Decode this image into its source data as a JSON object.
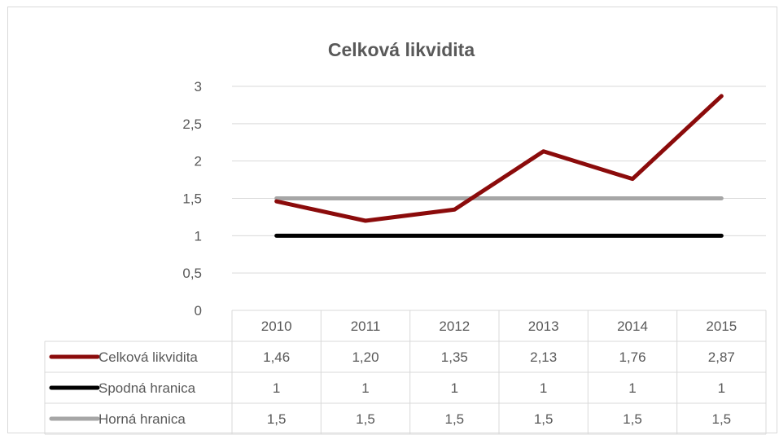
{
  "chart_data": {
    "type": "line",
    "title": "Celková likvidita",
    "categories": [
      "2010",
      "2011",
      "2012",
      "2013",
      "2014",
      "2015"
    ],
    "ylim": [
      0,
      3
    ],
    "yticks": [
      "0",
      "0,5",
      "1",
      "1,5",
      "2",
      "2,5",
      "3"
    ],
    "grid": true,
    "legend": "data-table",
    "series": [
      {
        "name": "Celková likvidita",
        "color": "#8b0b0b",
        "values": [
          1.46,
          1.2,
          1.35,
          2.13,
          1.76,
          2.87
        ],
        "labels": [
          "1,46",
          "1,20",
          "1,35",
          "2,13",
          "1,76",
          "2,87"
        ]
      },
      {
        "name": "Spodná hranica",
        "color": "#000000",
        "values": [
          1,
          1,
          1,
          1,
          1,
          1
        ],
        "labels": [
          "1",
          "1",
          "1",
          "1",
          "1",
          "1"
        ]
      },
      {
        "name": "Horná hranica",
        "color": "#a6a6a6",
        "values": [
          1.5,
          1.5,
          1.5,
          1.5,
          1.5,
          1.5
        ],
        "labels": [
          "1,5",
          "1,5",
          "1,5",
          "1,5",
          "1,5",
          "1,5"
        ]
      }
    ]
  }
}
